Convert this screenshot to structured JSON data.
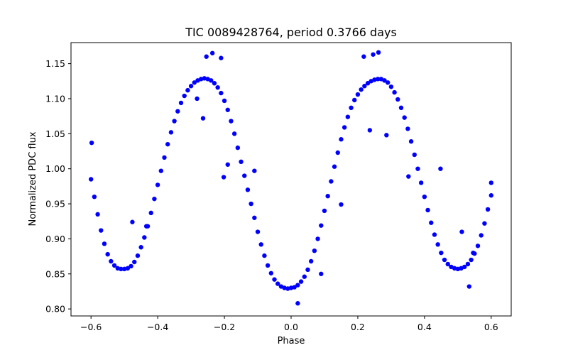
{
  "chart_data": {
    "type": "scatter",
    "title": "TIC 0089428764, period 0.3766 days",
    "xlabel": "Phase",
    "ylabel": "Normalized PDC flux",
    "xlim": [
      -0.66,
      0.66
    ],
    "ylim": [
      0.79,
      1.18
    ],
    "xticks": [
      -0.6,
      -0.4,
      -0.2,
      0.0,
      0.2,
      0.4,
      0.6
    ],
    "xtick_labels": [
      "−0.6",
      "−0.4",
      "−0.2",
      "0.0",
      "0.2",
      "0.4",
      "0.6"
    ],
    "yticks": [
      0.8,
      0.85,
      0.9,
      0.95,
      1.0,
      1.05,
      1.1,
      1.15
    ],
    "ytick_labels": [
      "0.80",
      "0.85",
      "0.90",
      "0.95",
      "1.00",
      "1.05",
      "1.10",
      "1.15"
    ],
    "grid": false,
    "marker_color": "#0000ff",
    "series": [
      {
        "points": [
          [
            -0.6,
            0.985
          ],
          [
            -0.59,
            0.96
          ],
          [
            -0.58,
            0.935
          ],
          [
            -0.57,
            0.912
          ],
          [
            -0.56,
            0.893
          ],
          [
            -0.55,
            0.878
          ],
          [
            -0.54,
            0.868
          ],
          [
            -0.53,
            0.862
          ],
          [
            -0.52,
            0.858
          ],
          [
            -0.51,
            0.857
          ],
          [
            -0.5,
            0.857
          ],
          [
            -0.49,
            0.858
          ],
          [
            -0.48,
            0.861
          ],
          [
            -0.47,
            0.867
          ],
          [
            -0.46,
            0.876
          ],
          [
            -0.45,
            0.888
          ],
          [
            -0.44,
            0.902
          ],
          [
            -0.43,
            0.918
          ],
          [
            -0.42,
            0.937
          ],
          [
            -0.41,
            0.957
          ],
          [
            -0.4,
            0.977
          ],
          [
            -0.39,
            0.997
          ],
          [
            -0.38,
            1.016
          ],
          [
            -0.37,
            1.035
          ],
          [
            -0.36,
            1.052
          ],
          [
            -0.35,
            1.068
          ],
          [
            -0.34,
            1.082
          ],
          [
            -0.33,
            1.094
          ],
          [
            -0.32,
            1.104
          ],
          [
            -0.31,
            1.112
          ],
          [
            -0.3,
            1.118
          ],
          [
            -0.29,
            1.123
          ],
          [
            -0.28,
            1.126
          ],
          [
            -0.27,
            1.128
          ],
          [
            -0.26,
            1.129
          ],
          [
            -0.25,
            1.128
          ],
          [
            -0.24,
            1.126
          ],
          [
            -0.23,
            1.122
          ],
          [
            -0.22,
            1.116
          ],
          [
            -0.21,
            1.108
          ],
          [
            -0.2,
            1.097
          ],
          [
            -0.19,
            1.084
          ],
          [
            -0.18,
            1.068
          ],
          [
            -0.17,
            1.05
          ],
          [
            -0.16,
            1.03
          ],
          [
            -0.15,
            1.01
          ],
          [
            -0.14,
            0.99
          ],
          [
            -0.13,
            0.97
          ],
          [
            -0.12,
            0.95
          ],
          [
            -0.11,
            0.93
          ],
          [
            -0.1,
            0.91
          ],
          [
            -0.09,
            0.892
          ],
          [
            -0.08,
            0.876
          ],
          [
            -0.07,
            0.862
          ],
          [
            -0.06,
            0.851
          ],
          [
            -0.05,
            0.842
          ],
          [
            -0.04,
            0.836
          ],
          [
            -0.03,
            0.832
          ],
          [
            -0.02,
            0.83
          ],
          [
            -0.01,
            0.829
          ],
          [
            0.0,
            0.83
          ],
          [
            0.01,
            0.831
          ],
          [
            0.02,
            0.834
          ],
          [
            0.03,
            0.839
          ],
          [
            0.04,
            0.846
          ],
          [
            0.05,
            0.856
          ],
          [
            0.06,
            0.868
          ],
          [
            0.07,
            0.883
          ],
          [
            0.08,
            0.9
          ],
          [
            0.09,
            0.919
          ],
          [
            0.1,
            0.94
          ],
          [
            0.11,
            0.961
          ],
          [
            0.12,
            0.982
          ],
          [
            0.13,
            1.003
          ],
          [
            0.14,
            1.023
          ],
          [
            0.15,
            1.042
          ],
          [
            0.16,
            1.059
          ],
          [
            0.17,
            1.074
          ],
          [
            0.18,
            1.087
          ],
          [
            0.19,
            1.098
          ],
          [
            0.2,
            1.106
          ],
          [
            0.21,
            1.113
          ],
          [
            0.22,
            1.118
          ],
          [
            0.23,
            1.122
          ],
          [
            0.24,
            1.125
          ],
          [
            0.25,
            1.127
          ],
          [
            0.26,
            1.128
          ],
          [
            0.27,
            1.128
          ],
          [
            0.28,
            1.126
          ],
          [
            0.29,
            1.123
          ],
          [
            0.3,
            1.117
          ],
          [
            0.31,
            1.109
          ],
          [
            0.32,
            1.099
          ],
          [
            0.33,
            1.087
          ],
          [
            0.34,
            1.073
          ],
          [
            0.35,
            1.057
          ],
          [
            0.36,
            1.039
          ],
          [
            0.37,
            1.02
          ],
          [
            0.38,
            1.0
          ],
          [
            0.39,
            0.98
          ],
          [
            0.4,
            0.96
          ],
          [
            0.41,
            0.941
          ],
          [
            0.42,
            0.923
          ],
          [
            0.43,
            0.906
          ],
          [
            0.44,
            0.892
          ],
          [
            0.45,
            0.88
          ],
          [
            0.46,
            0.87
          ],
          [
            0.47,
            0.864
          ],
          [
            0.48,
            0.86
          ],
          [
            0.49,
            0.858
          ],
          [
            0.5,
            0.857
          ],
          [
            0.51,
            0.858
          ],
          [
            0.52,
            0.86
          ],
          [
            0.53,
            0.864
          ],
          [
            0.54,
            0.87
          ],
          [
            0.55,
            0.879
          ],
          [
            0.56,
            0.89
          ],
          [
            0.57,
            0.905
          ],
          [
            0.58,
            0.922
          ],
          [
            0.59,
            0.942
          ],
          [
            0.6,
            0.962
          ],
          [
            -0.598,
            1.037
          ],
          [
            -0.476,
            0.924
          ],
          [
            -0.434,
            0.918
          ],
          [
            -0.282,
            1.1
          ],
          [
            -0.264,
            1.072
          ],
          [
            -0.254,
            1.16
          ],
          [
            -0.236,
            1.165
          ],
          [
            -0.21,
            1.158
          ],
          [
            -0.202,
            0.988
          ],
          [
            -0.19,
            1.006
          ],
          [
            -0.11,
            0.997
          ],
          [
            0.02,
            0.808
          ],
          [
            0.09,
            0.85
          ],
          [
            0.15,
            0.949
          ],
          [
            0.218,
            1.16
          ],
          [
            0.246,
            1.163
          ],
          [
            0.262,
            1.166
          ],
          [
            0.236,
            1.055
          ],
          [
            0.286,
            1.048
          ],
          [
            0.352,
            0.989
          ],
          [
            0.448,
            1.0
          ],
          [
            0.512,
            0.91
          ],
          [
            0.534,
            0.832
          ],
          [
            0.546,
            0.88
          ],
          [
            0.6,
            0.98
          ]
        ]
      }
    ]
  }
}
